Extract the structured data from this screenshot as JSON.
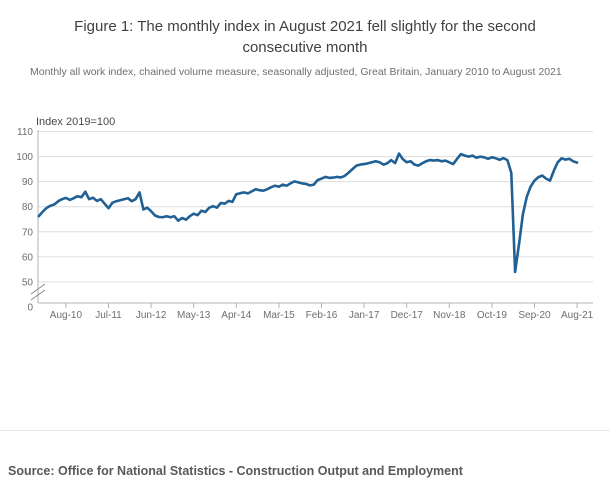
{
  "chart_data": {
    "type": "line",
    "title": "Figure 1: The monthly index in August 2021 fell slightly for the second consecutive month",
    "subtitle": "Monthly all work index, chained volume measure, seasonally adjusted, Great Britain, January 2010 to August 2021",
    "source": "Source: Office for National Statistics - Construction Output and Employment",
    "y_axis_label": "Index 2019=100",
    "y_ticks": [
      110,
      100,
      90,
      80,
      70,
      60,
      50,
      0
    ],
    "y_axis_break_between": [
      50,
      0
    ],
    "ylim_display": [
      50,
      110
    ],
    "grid": "horizontal",
    "legend": "none",
    "x_range": {
      "start": "Jan 2010",
      "end": "Aug 2021",
      "points": 140
    },
    "x_ticks": [
      {
        "label": "Aug-10",
        "month_index": 7
      },
      {
        "label": "Jul-11",
        "month_index": 18
      },
      {
        "label": "Jun-12",
        "month_index": 29
      },
      {
        "label": "May-13",
        "month_index": 40
      },
      {
        "label": "Apr-14",
        "month_index": 51
      },
      {
        "label": "Mar-15",
        "month_index": 62
      },
      {
        "label": "Feb-16",
        "month_index": 73
      },
      {
        "label": "Jan-17",
        "month_index": 84
      },
      {
        "label": "Dec-17",
        "month_index": 95
      },
      {
        "label": "Nov-18",
        "month_index": 106
      },
      {
        "label": "Oct-19",
        "month_index": 117
      },
      {
        "label": "Sep-20",
        "month_index": 128
      },
      {
        "label": "Aug-21",
        "month_index": 139
      }
    ],
    "series": [
      {
        "name": "Monthly all work index",
        "color": "#206095",
        "values": [
          76.2,
          78.0,
          79.5,
          80.4,
          80.9,
          82.2,
          83.0,
          83.5,
          82.7,
          83.4,
          84.2,
          83.8,
          86.0,
          83.0,
          83.6,
          82.3,
          83.0,
          81.2,
          79.4,
          81.6,
          82.2,
          82.6,
          83.0,
          83.4,
          82.2,
          83.0,
          85.7,
          78.9,
          79.6,
          78.2,
          76.5,
          75.9,
          75.8,
          76.2,
          75.8,
          76.2,
          74.4,
          75.5,
          74.8,
          76.2,
          77.2,
          76.6,
          78.4,
          77.9,
          79.6,
          80.2,
          79.6,
          81.5,
          81.2,
          82.3,
          81.9,
          85.0,
          85.4,
          85.7,
          85.3,
          86.1,
          87.0,
          86.6,
          86.4,
          87.0,
          87.8,
          88.4,
          88.0,
          88.8,
          88.4,
          89.3,
          90.1,
          89.7,
          89.3,
          89.1,
          88.5,
          88.8,
          90.6,
          91.2,
          91.9,
          91.5,
          91.6,
          91.9,
          91.7,
          92.3,
          93.6,
          95.0,
          96.4,
          96.8,
          97.0,
          97.3,
          97.7,
          98.1,
          97.7,
          96.8,
          97.3,
          98.6,
          97.4,
          101.2,
          99.0,
          97.7,
          98.1,
          96.8,
          96.4,
          97.3,
          98.1,
          98.6,
          98.4,
          98.6,
          98.1,
          98.4,
          97.7,
          97.0,
          99.1,
          101.0,
          100.4,
          100.0,
          100.4,
          99.5,
          100.0,
          99.7,
          99.1,
          99.7,
          99.3,
          98.7,
          99.4,
          98.6,
          93.5,
          54.0,
          65.0,
          77.0,
          84.0,
          88.0,
          90.4,
          91.8,
          92.4,
          91.2,
          90.4,
          94.4,
          97.7,
          99.3,
          98.8,
          99.1,
          98.1,
          97.6
        ]
      }
    ]
  },
  "style_colors": {
    "line": "#206095",
    "grid": "#dedede",
    "axis": "#b3b3b3",
    "tick_label": "#6e6e6e",
    "title": "#404040",
    "subtitle": "#6e6e6e",
    "source": "#595959",
    "divider": "#e9e9e9",
    "break_mark": "#8a8a8a"
  }
}
